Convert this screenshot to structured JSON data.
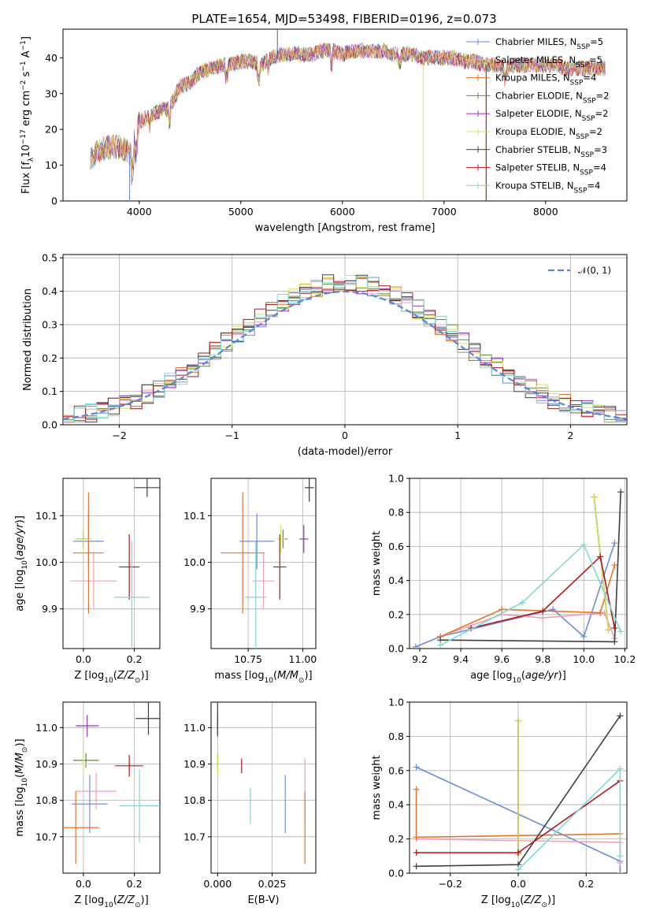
{
  "title": "PLATE=1654, MJD=53498, FIBERID=0196, z=0.073",
  "series": [
    {
      "name": "Chabrier MILES, N",
      "nssp": "=5",
      "color": "#6a8fd9"
    },
    {
      "name": "Salpeter MILES, N",
      "nssp": "=5",
      "color": "#f0a0b8"
    },
    {
      "name": "Kroupa MILES, N",
      "nssp": "=4",
      "color": "#e8742a"
    },
    {
      "name": "Chabrier ELODIE, N",
      "nssp": "=2",
      "color": "#5e8a40"
    },
    {
      "name": "Salpeter ELODIE, N",
      "nssp": "=2",
      "color": "#9b30c0"
    },
    {
      "name": "Kroupa ELODIE, N",
      "nssp": "=2",
      "color": "#d8e25a"
    },
    {
      "name": "Chabrier STELIB, N",
      "nssp": "=3",
      "color": "#404040"
    },
    {
      "name": "Salpeter STELIB, N",
      "nssp": "=4",
      "color": "#b01818"
    },
    {
      "name": "Kroupa STELIB, N",
      "nssp": "=4",
      "color": "#80d8d8"
    }
  ],
  "nssp_sub": "SSP",
  "chart_data": [
    {
      "id": "spectrum",
      "type": "line",
      "xlabel": "wavelength [Angstrom, rest frame]",
      "ylabel": "Flux [f",
      "xlim": [
        3250,
        8800
      ],
      "ylim": [
        0,
        48
      ],
      "xticks": [
        4000,
        5000,
        6000,
        7000,
        8000
      ],
      "yticks": [
        0,
        10,
        20,
        30,
        40
      ],
      "continuum": [
        [
          3520,
          12
        ],
        [
          3600,
          14
        ],
        [
          3700,
          15
        ],
        [
          3800,
          15
        ],
        [
          3880,
          14
        ],
        [
          3920,
          13
        ],
        [
          4000,
          22
        ],
        [
          4100,
          24
        ],
        [
          4200,
          25
        ],
        [
          4300,
          26
        ],
        [
          4400,
          32
        ],
        [
          4500,
          33
        ],
        [
          4600,
          36
        ],
        [
          4700,
          37
        ],
        [
          4800,
          38
        ],
        [
          4900,
          38
        ],
        [
          5000,
          39
        ],
        [
          5100,
          39
        ],
        [
          5200,
          38
        ],
        [
          5300,
          40
        ],
        [
          5400,
          41
        ],
        [
          5500,
          41
        ],
        [
          5600,
          41
        ],
        [
          5700,
          41
        ],
        [
          5800,
          42
        ],
        [
          5900,
          42
        ],
        [
          6000,
          41
        ],
        [
          6100,
          42
        ],
        [
          6200,
          42
        ],
        [
          6300,
          42
        ],
        [
          6400,
          42
        ],
        [
          6500,
          41
        ],
        [
          6600,
          41
        ],
        [
          6700,
          41
        ],
        [
          6800,
          40
        ],
        [
          6900,
          40
        ],
        [
          7000,
          40
        ],
        [
          7100,
          40
        ],
        [
          7200,
          39
        ],
        [
          7300,
          39
        ],
        [
          7400,
          38
        ],
        [
          7500,
          38
        ],
        [
          7600,
          37
        ],
        [
          7700,
          38
        ],
        [
          7800,
          38
        ],
        [
          7900,
          38
        ],
        [
          8000,
          38
        ],
        [
          8100,
          38
        ],
        [
          8200,
          37
        ],
        [
          8300,
          37
        ],
        [
          8400,
          37
        ],
        [
          8500,
          37
        ],
        [
          8590,
          37
        ]
      ]
    },
    {
      "id": "residuals",
      "type": "histogram",
      "xlabel": "(data-model)/error",
      "ylabel": "Normed distribution",
      "xlim": [
        -2.5,
        2.5
      ],
      "ylim": [
        0,
        0.51
      ],
      "xticks": [
        -2,
        -1,
        0,
        1,
        2
      ],
      "xtick_labels": [
        "−2",
        "−1",
        "0",
        "1",
        "2"
      ],
      "yticks": [
        0.0,
        0.1,
        0.2,
        0.3,
        0.4,
        0.5
      ],
      "ytick_labels": [
        "0.0",
        "0.1",
        "0.2",
        "0.3",
        "0.4",
        "0.5"
      ],
      "bin_width": 0.1,
      "normal_label": "𝒩(0, 1)",
      "normal_color": "#5b86d8"
    },
    {
      "id": "z-age",
      "type": "errorbar",
      "xlabel": "Z [log",
      "ylabel": "age  [log",
      "xlim": [
        -0.08,
        0.3
      ],
      "ylim": [
        9.815,
        10.18
      ],
      "xticks": [
        0.0,
        0.2
      ],
      "xtick_labels": [
        "0.0",
        "0.2"
      ],
      "yticks": [
        9.9,
        10.0,
        10.1
      ],
      "ytick_labels": [
        "9.9",
        "10.0",
        "10.1"
      ],
      "points": [
        {
          "s": 0,
          "x": 0.02,
          "xerr": 0.06,
          "y": 10.045,
          "yerr": 0.06
        },
        {
          "s": 1,
          "x": 0.04,
          "xerr": 0.09,
          "y": 9.96,
          "yerr": 0.06
        },
        {
          "s": 2,
          "x": 0.02,
          "xerr": 0.06,
          "y": 10.02,
          "yerr": 0.13
        },
        {
          "s": 3,
          "x": 0.0,
          "xerr": 0.03,
          "y": 10.05,
          "yerr": 0.02
        },
        {
          "s": 4,
          "x": 0.0,
          "xerr": 0.02,
          "y": 10.05,
          "yerr": 0.02
        },
        {
          "s": 5,
          "x": 0.0,
          "xerr": 0.03,
          "y": 10.05,
          "yerr": 0.03
        },
        {
          "s": 6,
          "x": 0.25,
          "xerr": 0.05,
          "y": 10.16,
          "yerr": 0.02
        },
        {
          "s": 7,
          "x": 0.18,
          "xerr": 0.04,
          "y": 9.99,
          "yerr": 0.07
        },
        {
          "s": 8,
          "x": 0.19,
          "xerr": 0.07,
          "y": 9.925,
          "yerr": 0.12
        }
      ]
    },
    {
      "id": "mass-age",
      "type": "errorbar",
      "xlabel": "mass [log",
      "ylabel": "",
      "xlim": [
        10.58,
        11.06
      ],
      "ylim": [
        9.815,
        10.18
      ],
      "xticks": [
        10.75,
        11.0
      ],
      "xtick_labels": [
        "10.75",
        "11.00"
      ],
      "yticks": [
        9.9,
        10.0,
        10.1
      ],
      "ytick_labels": [
        "9.9",
        "10.0",
        "10.1"
      ],
      "points": [
        {
          "s": 0,
          "x": 10.79,
          "xerr": 0.08,
          "y": 10.045,
          "yerr": 0.06
        },
        {
          "s": 1,
          "x": 10.82,
          "xerr": 0.05,
          "y": 9.96,
          "yerr": 0.06
        },
        {
          "s": 2,
          "x": 10.725,
          "xerr": 0.1,
          "y": 10.02,
          "yerr": 0.13
        },
        {
          "s": 3,
          "x": 10.91,
          "xerr": 0.02,
          "y": 10.05,
          "yerr": 0.02
        },
        {
          "s": 4,
          "x": 11.005,
          "xerr": 0.02,
          "y": 10.05,
          "yerr": 0.03
        },
        {
          "s": 5,
          "x": 10.9,
          "xerr": 0.02,
          "y": 10.05,
          "yerr": 0.03
        },
        {
          "s": 6,
          "x": 11.03,
          "xerr": 0.02,
          "y": 10.16,
          "yerr": 0.03
        },
        {
          "s": 7,
          "x": 10.895,
          "xerr": 0.03,
          "y": 9.99,
          "yerr": 0.07
        },
        {
          "s": 8,
          "x": 10.785,
          "xerr": 0.05,
          "y": 9.925,
          "yerr": 0.12
        }
      ]
    },
    {
      "id": "age-weight",
      "type": "line",
      "xlabel": "age  [log",
      "ylabel": "mass weight",
      "xlim": [
        9.15,
        10.21
      ],
      "ylim": [
        0,
        1.0
      ],
      "xticks": [
        9.2,
        9.4,
        9.6,
        9.8,
        10.0,
        10.2
      ],
      "xtick_labels": [
        "9.2",
        "9.4",
        "9.6",
        "9.8",
        "10.0",
        "10.2"
      ],
      "yticks": [
        0.0,
        0.2,
        0.4,
        0.6,
        0.8,
        1.0
      ],
      "ytick_labels": [
        "0.0",
        "0.2",
        "0.4",
        "0.6",
        "0.8",
        "1.0"
      ],
      "lines": [
        {
          "s": 0,
          "x": [
            9.18,
            9.3,
            9.85,
            10.0,
            10.15
          ],
          "y": [
            0.01,
            0.07,
            0.23,
            0.07,
            0.62
          ]
        },
        {
          "s": 1,
          "x": [
            9.3,
            9.6,
            9.8,
            10.1,
            10.15
          ],
          "y": [
            0.07,
            0.2,
            0.18,
            0.21,
            0.06
          ]
        },
        {
          "s": 2,
          "x": [
            9.3,
            9.6,
            10.08,
            10.15
          ],
          "y": [
            0.07,
            0.23,
            0.21,
            0.49
          ]
        },
        {
          "s": 3,
          "x": [
            10.05,
            10.12
          ],
          "y": [
            0.89,
            0.11
          ]
        },
        {
          "s": 4,
          "x": [
            10.05,
            10.12
          ],
          "y": [
            0.89,
            0.11
          ]
        },
        {
          "s": 5,
          "x": [
            10.05,
            10.12
          ],
          "y": [
            0.89,
            0.11
          ]
        },
        {
          "s": 6,
          "x": [
            9.3,
            10.15,
            10.18
          ],
          "y": [
            0.05,
            0.04,
            0.92
          ]
        },
        {
          "s": 7,
          "x": [
            9.45,
            9.8,
            10.08,
            10.15
          ],
          "y": [
            0.12,
            0.22,
            0.54,
            0.12
          ]
        },
        {
          "s": 8,
          "x": [
            9.3,
            9.7,
            10.0,
            10.18
          ],
          "y": [
            0.02,
            0.27,
            0.61,
            0.1
          ]
        }
      ]
    },
    {
      "id": "z-mass",
      "type": "errorbar",
      "xlabel": "Z [log",
      "ylabel": "mass [log",
      "xlim": [
        -0.08,
        0.3
      ],
      "ylim": [
        10.6,
        11.07
      ],
      "xticks": [
        0.0,
        0.2
      ],
      "xtick_labels": [
        "0.0",
        "0.2"
      ],
      "yticks": [
        10.7,
        10.8,
        10.9,
        11.0
      ],
      "ytick_labels": [
        "10.7",
        "10.8",
        "10.9",
        "11.0"
      ],
      "points": [
        {
          "s": 0,
          "x": 0.025,
          "xerr": 0.07,
          "y": 10.79,
          "yerr": 0.08
        },
        {
          "s": 1,
          "x": 0.05,
          "xerr": 0.08,
          "y": 10.825,
          "yerr": 0.05
        },
        {
          "s": 2,
          "x": -0.03,
          "xerr": 0.09,
          "y": 10.725,
          "yerr": 0.1
        },
        {
          "s": 3,
          "x": 0.01,
          "xerr": 0.05,
          "y": 10.91,
          "yerr": 0.02
        },
        {
          "s": 4,
          "x": 0.015,
          "xerr": 0.045,
          "y": 11.005,
          "yerr": 0.03
        },
        {
          "s": 5,
          "x": 0.0,
          "xerr": 0.02,
          "y": 10.9,
          "yerr": 0.03
        },
        {
          "s": 6,
          "x": 0.255,
          "xerr": 0.05,
          "y": 11.025,
          "yerr": 0.045
        },
        {
          "s": 7,
          "x": 0.18,
          "xerr": 0.055,
          "y": 10.895,
          "yerr": 0.03
        },
        {
          "s": 8,
          "x": 0.22,
          "xerr": 0.08,
          "y": 10.785,
          "yerr": 0.1
        }
      ]
    },
    {
      "id": "ebv-mass",
      "type": "errorbar",
      "xlabel": "E(B-V)",
      "ylabel": "",
      "xlim": [
        -0.003,
        0.045
      ],
      "ylim": [
        10.6,
        11.07
      ],
      "xticks": [
        0.0,
        0.025
      ],
      "xtick_labels": [
        "0.000",
        "0.025"
      ],
      "yticks": [
        10.7,
        10.8,
        10.9,
        11.0
      ],
      "ytick_labels": [
        "10.7",
        "10.8",
        "10.9",
        "11.0"
      ],
      "points": [
        {
          "s": 0,
          "x": 0.031,
          "xerr": 0,
          "y": 10.79,
          "yerr": 0.08
        },
        {
          "s": 1,
          "x": 0.04,
          "xerr": 0,
          "y": 10.825,
          "yerr": 0.09
        },
        {
          "s": 2,
          "x": 0.04,
          "xerr": 0,
          "y": 10.725,
          "yerr": 0.1
        },
        {
          "s": 3,
          "x": 0.0,
          "xerr": 0,
          "y": 10.91,
          "yerr": 0.02
        },
        {
          "s": 4,
          "x": 0.0,
          "xerr": 0,
          "y": 11.005,
          "yerr": 0.03
        },
        {
          "s": 5,
          "x": 0.0,
          "xerr": 0,
          "y": 10.9,
          "yerr": 0.03
        },
        {
          "s": 6,
          "x": 0.0,
          "xerr": 0,
          "y": 11.025,
          "yerr": 0.045
        },
        {
          "s": 7,
          "x": 0.011,
          "xerr": 0,
          "y": 10.895,
          "yerr": 0.02
        },
        {
          "s": 8,
          "x": 0.015,
          "xerr": 0,
          "y": 10.785,
          "yerr": 0.05
        }
      ]
    },
    {
      "id": "z-weight",
      "type": "line",
      "xlabel": "Z [log",
      "ylabel": "mass weight",
      "xlim": [
        -0.32,
        0.32
      ],
      "ylim": [
        0,
        1.0
      ],
      "xticks": [
        -0.2,
        0.0,
        0.2
      ],
      "xtick_labels": [
        "−0.2",
        "0.0",
        "0.2"
      ],
      "yticks": [
        0.0,
        0.2,
        0.4,
        0.6,
        0.8,
        1.0
      ],
      "ytick_labels": [
        "0.0",
        "0.2",
        "0.4",
        "0.6",
        "0.8",
        "1.0"
      ],
      "lines": [
        {
          "s": 0,
          "x": [
            -0.3,
            0.3,
            0.3
          ],
          "y": [
            0.62,
            0.07,
            0.0
          ]
        },
        {
          "s": 1,
          "x": [
            -0.3,
            0.3,
            0.3
          ],
          "y": [
            0.2,
            0.18,
            0.06
          ]
        },
        {
          "s": 2,
          "x": [
            -0.3,
            -0.3,
            0.0,
            0.3
          ],
          "y": [
            0.49,
            0.21,
            0.22,
            0.23
          ]
        },
        {
          "s": 3,
          "x": [
            0.0,
            0.0
          ],
          "y": [
            0.89,
            0.11
          ]
        },
        {
          "s": 4,
          "x": [
            0.0,
            0.0
          ],
          "y": [
            0.89,
            0.11
          ]
        },
        {
          "s": 5,
          "x": [
            0.0,
            0.0
          ],
          "y": [
            0.89,
            0.11
          ]
        },
        {
          "s": 6,
          "x": [
            -0.3,
            0.0,
            0.3
          ],
          "y": [
            0.04,
            0.05,
            0.92
          ]
        },
        {
          "s": 7,
          "x": [
            -0.3,
            0.0,
            0.3
          ],
          "y": [
            0.12,
            0.12,
            0.54
          ]
        },
        {
          "s": 8,
          "x": [
            0.0,
            0.3,
            0.3
          ],
          "y": [
            0.02,
            0.61,
            0.1
          ]
        }
      ]
    }
  ]
}
